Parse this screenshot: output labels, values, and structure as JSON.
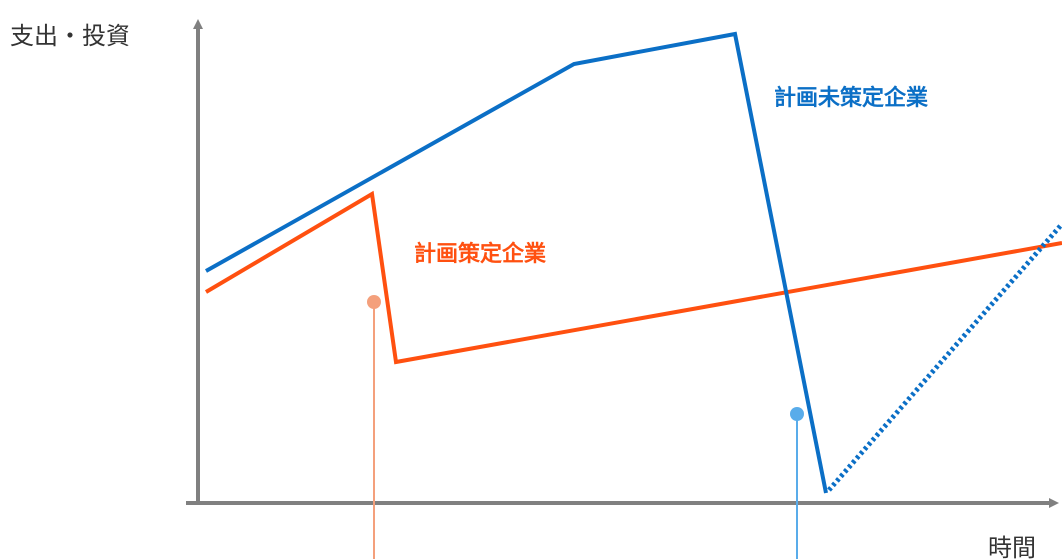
{
  "diagram": {
    "y_axis_label": "支出・投資",
    "x_axis_label": "時間",
    "series": [
      {
        "id": "unplanned",
        "name": "計画未策定企業",
        "color": "#0B6FC6"
      },
      {
        "id": "planned",
        "name": "計画策定企業",
        "color": "#FF5010"
      }
    ],
    "colors": {
      "axis": "#808080",
      "planned_marker": "#F4A07C",
      "unplanned_marker": "#59ACEA"
    }
  }
}
